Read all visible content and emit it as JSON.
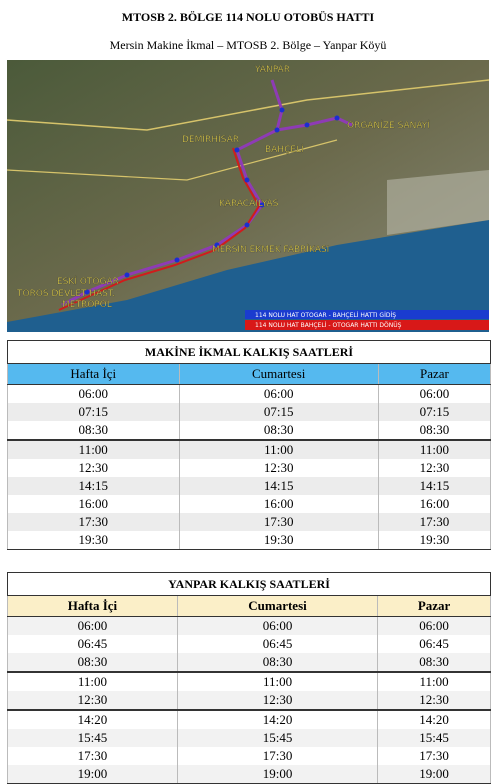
{
  "header": {
    "title": "MTOSB 2. BÖLGE 114 NOLU OTOBÜS HATTI",
    "subtitle": "Mersin Makine İkmal – MTOSB 2. Bölge – Yanpar Köyü"
  },
  "map": {
    "labels": [
      "YANPAR",
      "DEMİRHİSAR",
      "BAHÇELİ",
      "ORGANİZE SANAYİ",
      "KARACAİLYAS",
      "MERSİN EKMEK FABRİKASI",
      "ESKİ OTOGAR",
      "TOROS DEVLET HAST.",
      "METROPOL"
    ],
    "legend": [
      "114 NOLU HAT OTOGAR - BAHÇELİ HATTI GİDİŞ",
      "114 NOLU HAT BAHÇELİ - OTOGAR HATTI DÖNÜŞ"
    ]
  },
  "tables": [
    {
      "title": "MAKİNE İKMAL KALKIŞ SAATLERİ",
      "headers": [
        "Hafta İçi",
        "Cumartesi",
        "Pazar"
      ],
      "rows": [
        [
          "06:00",
          "06:00",
          "06:00"
        ],
        [
          "07:15",
          "07:15",
          "07:15"
        ],
        [
          "08:30",
          "08:30",
          "08:30"
        ],
        [
          "11:00",
          "11:00",
          "11:00"
        ],
        [
          "12:30",
          "12:30",
          "12:30"
        ],
        [
          "14:15",
          "14:15",
          "14:15"
        ],
        [
          "16:00",
          "16:00",
          "16:00"
        ],
        [
          "17:30",
          "17:30",
          "17:30"
        ],
        [
          "19:30",
          "19:30",
          "19:30"
        ]
      ]
    },
    {
      "title": "YANPAR KALKIŞ SAATLERİ",
      "headers": [
        "Hafta İçi",
        "Cumartesi",
        "Pazar"
      ],
      "rows": [
        [
          "06:00",
          "06:00",
          "06:00"
        ],
        [
          "06:45",
          "06:45",
          "06:45"
        ],
        [
          "08:30",
          "08:30",
          "08:30"
        ],
        [
          "11:00",
          "11:00",
          "11:00"
        ],
        [
          "12:30",
          "12:30",
          "12:30"
        ],
        [
          "14:20",
          "14:20",
          "14:20"
        ],
        [
          "15:45",
          "15:45",
          "15:45"
        ],
        [
          "17:30",
          "17:30",
          "17:30"
        ],
        [
          "19:00",
          "19:00",
          "19:00"
        ]
      ]
    }
  ]
}
